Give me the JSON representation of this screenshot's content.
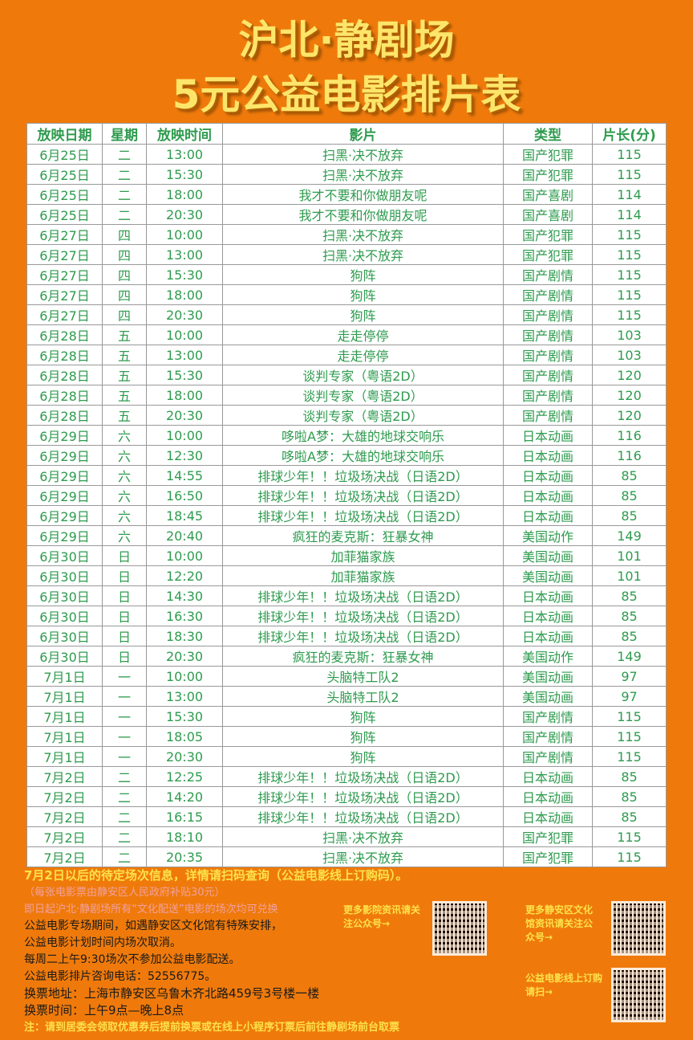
{
  "title": {
    "line1": "沪北·静剧场",
    "line2": "5元公益电影排片表"
  },
  "headers": [
    "放映日期",
    "星期",
    "放映时间",
    "影片",
    "类型",
    "片长(分)"
  ],
  "rows": [
    [
      "6月25日",
      "二",
      "13:00",
      "扫黑·决不放弃",
      "国产犯罪",
      "115"
    ],
    [
      "6月25日",
      "二",
      "15:30",
      "扫黑·决不放弃",
      "国产犯罪",
      "115"
    ],
    [
      "6月25日",
      "二",
      "18:00",
      "我才不要和你做朋友呢",
      "国产喜剧",
      "114"
    ],
    [
      "6月25日",
      "二",
      "20:30",
      "我才不要和你做朋友呢",
      "国产喜剧",
      "114"
    ],
    [
      "6月27日",
      "四",
      "10:00",
      "扫黑·决不放弃",
      "国产犯罪",
      "115"
    ],
    [
      "6月27日",
      "四",
      "13:00",
      "扫黑·决不放弃",
      "国产犯罪",
      "115"
    ],
    [
      "6月27日",
      "四",
      "15:30",
      "狗阵",
      "国产剧情",
      "115"
    ],
    [
      "6月27日",
      "四",
      "18:00",
      "狗阵",
      "国产剧情",
      "115"
    ],
    [
      "6月27日",
      "四",
      "20:30",
      "狗阵",
      "国产剧情",
      "115"
    ],
    [
      "6月28日",
      "五",
      "10:00",
      "走走停停",
      "国产剧情",
      "103"
    ],
    [
      "6月28日",
      "五",
      "13:00",
      "走走停停",
      "国产剧情",
      "103"
    ],
    [
      "6月28日",
      "五",
      "15:30",
      "谈判专家（粤语2D）",
      "国产剧情",
      "120"
    ],
    [
      "6月28日",
      "五",
      "18:00",
      "谈判专家（粤语2D）",
      "国产剧情",
      "120"
    ],
    [
      "6月28日",
      "五",
      "20:30",
      "谈判专家（粤语2D）",
      "国产剧情",
      "120"
    ],
    [
      "6月29日",
      "六",
      "10:00",
      "哆啦A梦：大雄的地球交响乐",
      "日本动画",
      "116"
    ],
    [
      "6月29日",
      "六",
      "12:30",
      "哆啦A梦：大雄的地球交响乐",
      "日本动画",
      "116"
    ],
    [
      "6月29日",
      "六",
      "14:55",
      "排球少年！！垃圾场决战（日语2D）",
      "日本动画",
      "85"
    ],
    [
      "6月29日",
      "六",
      "16:50",
      "排球少年！！垃圾场决战（日语2D）",
      "日本动画",
      "85"
    ],
    [
      "6月29日",
      "六",
      "18:45",
      "排球少年！！垃圾场决战（日语2D）",
      "日本动画",
      "85"
    ],
    [
      "6月29日",
      "六",
      "20:40",
      "疯狂的麦克斯：狂暴女神",
      "美国动作",
      "149"
    ],
    [
      "6月30日",
      "日",
      "10:00",
      "加菲猫家族",
      "美国动画",
      "101"
    ],
    [
      "6月30日",
      "日",
      "12:20",
      "加菲猫家族",
      "美国动画",
      "101"
    ],
    [
      "6月30日",
      "日",
      "14:30",
      "排球少年！！垃圾场决战（日语2D）",
      "日本动画",
      "85"
    ],
    [
      "6月30日",
      "日",
      "16:30",
      "排球少年！！垃圾场决战（日语2D）",
      "日本动画",
      "85"
    ],
    [
      "6月30日",
      "日",
      "18:30",
      "排球少年！！垃圾场决战（日语2D）",
      "日本动画",
      "85"
    ],
    [
      "6月30日",
      "日",
      "20:30",
      "疯狂的麦克斯：狂暴女神",
      "美国动作",
      "149"
    ],
    [
      "7月1日",
      "一",
      "10:00",
      "头脑特工队2",
      "美国动画",
      "97"
    ],
    [
      "7月1日",
      "一",
      "13:00",
      "头脑特工队2",
      "美国动画",
      "97"
    ],
    [
      "7月1日",
      "一",
      "15:30",
      "狗阵",
      "国产剧情",
      "115"
    ],
    [
      "7月1日",
      "一",
      "18:05",
      "狗阵",
      "国产剧情",
      "115"
    ],
    [
      "7月1日",
      "一",
      "20:30",
      "狗阵",
      "国产剧情",
      "115"
    ],
    [
      "7月2日",
      "二",
      "12:25",
      "排球少年！！垃圾场决战（日语2D）",
      "日本动画",
      "85"
    ],
    [
      "7月2日",
      "二",
      "14:20",
      "排球少年！！垃圾场决战（日语2D）",
      "日本动画",
      "85"
    ],
    [
      "7月2日",
      "二",
      "16:15",
      "排球少年！！垃圾场决战（日语2D）",
      "日本动画",
      "85"
    ],
    [
      "7月2日",
      "二",
      "18:10",
      "扫黑·决不放弃",
      "国产犯罪",
      "115"
    ],
    [
      "7月2日",
      "二",
      "20:35",
      "扫黑·决不放弃",
      "国产犯罪",
      "115"
    ]
  ],
  "notes": {
    "pending": "7月2日以后的待定场次信息，详情请扫码查询（公益电影线上订购码）。",
    "subsidy": "（每张电影票由静安区人民政府补贴30元）",
    "exchange_all": "即日起沪北·静剧场所有“文化配送”电影的场次均可兑换",
    "special1": "公益电影专场期间，如遇静安区文化馆有特殊安排，",
    "special2": "公益电影计划时间内场次取消。",
    "tuesday": "每周二上午9:30场次不参加公益电影配送。",
    "phone": "公益电影排片咨询电话：52556775。",
    "address": "换票地址：上海市静安区乌鲁木齐北路459号3号楼一楼",
    "hours": "换票时间：上午9点—晚上8点",
    "footnote": "注：请到居委会领取优惠券后提前换票或在线上小程序订票后前往静剧场前台取票"
  },
  "qr": {
    "cinema": "更多影院资讯请关注公众号→",
    "culture": "更多静安区文化馆资讯请关注公众号→",
    "order": "公益电影线上订购请扫→"
  },
  "colors": {
    "background": "#ef7a0b",
    "table_text": "#2e9b4e",
    "title": "#fde56a"
  }
}
